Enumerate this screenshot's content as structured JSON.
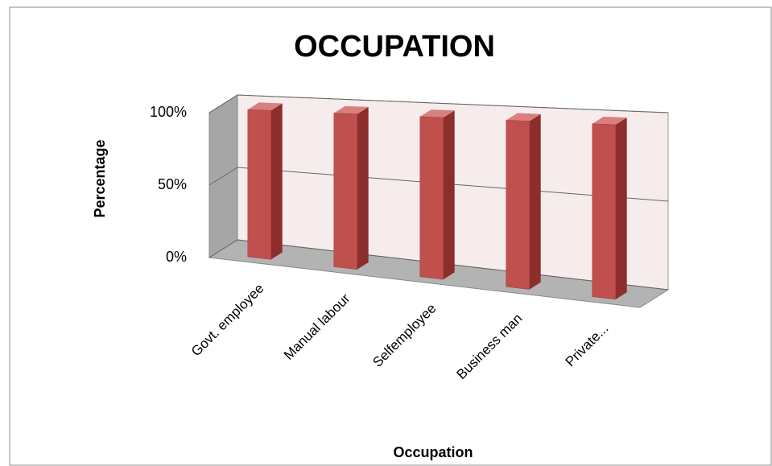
{
  "chart_data": {
    "type": "bar3d",
    "title": "OCCUPATION",
    "x_label": "Occupation",
    "y_label": "Percentage",
    "categories": [
      "Govt. employee",
      "Manual labour",
      "Selfemployee",
      "Business man",
      "Private..."
    ],
    "values": [
      100,
      100,
      100,
      100,
      100
    ],
    "color": "#c0504d",
    "ylim": [
      0,
      100
    ],
    "yticks": [
      {
        "value": 0,
        "label": "0%"
      },
      {
        "value": 50,
        "label": "50%"
      },
      {
        "value": 100,
        "label": "100%"
      }
    ],
    "grid": true
  }
}
